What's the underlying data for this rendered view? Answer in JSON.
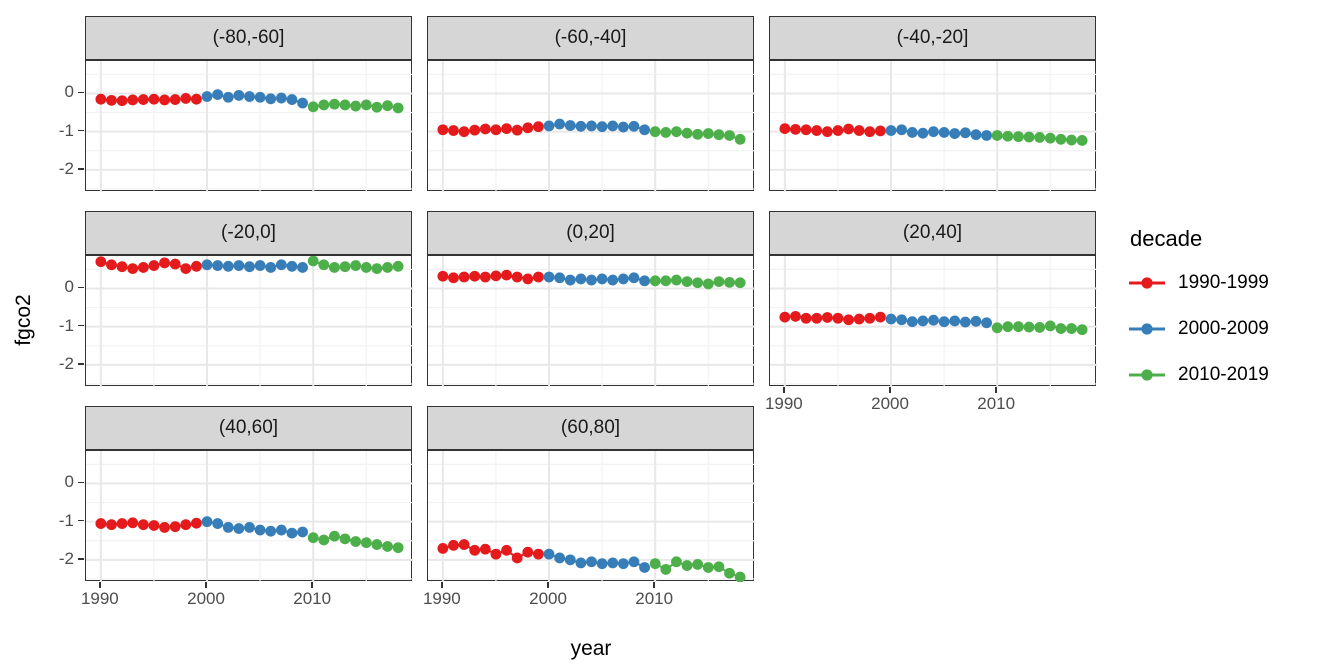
{
  "chart_data": {
    "type": "scatter",
    "title": "",
    "xlabel": "year",
    "ylabel": "fgco2",
    "legend_title": "decade",
    "legend_position": "right",
    "grid": true,
    "x_ticks": [
      1990,
      2000,
      2010
    ],
    "y_ticks": [
      0,
      -1,
      -2
    ],
    "x_minor_ticks": [
      1995,
      2005,
      2015
    ],
    "y_minor_ticks": [
      0.5,
      -0.5,
      -1.5,
      -2.5
    ],
    "xlim": [
      1988.6,
      2019.4
    ],
    "ylim": [
      -2.58,
      0.85
    ],
    "colors": {
      "red": "#E41A1C",
      "blue": "#377EB8",
      "green": "#4DAF4A",
      "strip_bg": "#D6D6D6",
      "panel_border": "#333333",
      "grid_major": "#E8E8E8",
      "grid_minor": "#F2F2F2",
      "tick_text": "#4D4D4D"
    },
    "series": [
      {
        "name": "1990-1999",
        "color": "#E41A1C",
        "years": [
          1990,
          1991,
          1992,
          1993,
          1994,
          1995,
          1996,
          1997,
          1998,
          1999
        ]
      },
      {
        "name": "2000-2009",
        "color": "#377EB8",
        "years": [
          2000,
          2001,
          2002,
          2003,
          2004,
          2005,
          2006,
          2007,
          2008,
          2009
        ]
      },
      {
        "name": "2010-2019",
        "color": "#4DAF4A",
        "years": [
          2010,
          2011,
          2012,
          2013,
          2014,
          2015,
          2016,
          2017,
          2018
        ]
      }
    ],
    "facets": [
      {
        "label": "(-80,-60]",
        "values": {
          "1990-1999": [
            -0.15,
            -0.18,
            -0.19,
            -0.17,
            -0.16,
            -0.15,
            -0.17,
            -0.16,
            -0.13,
            -0.15
          ],
          "2000-2009": [
            -0.08,
            -0.03,
            -0.1,
            -0.05,
            -0.08,
            -0.1,
            -0.14,
            -0.12,
            -0.16,
            -0.25
          ],
          "2010-2019": [
            -0.35,
            -0.3,
            -0.28,
            -0.3,
            -0.33,
            -0.3,
            -0.36,
            -0.32,
            -0.38
          ]
        }
      },
      {
        "label": "(-60,-40]",
        "values": {
          "1990-1999": [
            -0.95,
            -0.97,
            -1.0,
            -0.96,
            -0.93,
            -0.95,
            -0.92,
            -0.96,
            -0.9,
            -0.87
          ],
          "2000-2009": [
            -0.85,
            -0.8,
            -0.84,
            -0.86,
            -0.85,
            -0.87,
            -0.85,
            -0.88,
            -0.86,
            -0.95
          ],
          "2010-2019": [
            -1.0,
            -1.02,
            -1.0,
            -1.04,
            -1.07,
            -1.05,
            -1.08,
            -1.1,
            -1.2
          ]
        }
      },
      {
        "label": "(-40,-20]",
        "values": {
          "1990-1999": [
            -0.92,
            -0.94,
            -0.95,
            -0.97,
            -1.0,
            -0.97,
            -0.93,
            -0.97,
            -1.0,
            -0.98
          ],
          "2000-2009": [
            -0.97,
            -0.95,
            -1.02,
            -1.04,
            -1.0,
            -1.02,
            -1.05,
            -1.03,
            -1.08,
            -1.1
          ],
          "2010-2019": [
            -1.1,
            -1.12,
            -1.13,
            -1.14,
            -1.15,
            -1.17,
            -1.2,
            -1.22,
            -1.23
          ]
        }
      },
      {
        "label": "(-20,0]",
        "values": {
          "1990-1999": [
            0.7,
            0.62,
            0.57,
            0.52,
            0.55,
            0.6,
            0.67,
            0.64,
            0.52,
            0.58
          ],
          "2000-2009": [
            0.62,
            0.6,
            0.58,
            0.6,
            0.57,
            0.6,
            0.55,
            0.62,
            0.58,
            0.55
          ],
          "2010-2019": [
            0.72,
            0.62,
            0.55,
            0.57,
            0.6,
            0.55,
            0.52,
            0.55,
            0.58
          ]
        }
      },
      {
        "label": "(0,20]",
        "values": {
          "1990-1999": [
            0.32,
            0.28,
            0.3,
            0.32,
            0.3,
            0.33,
            0.35,
            0.3,
            0.25,
            0.3
          ],
          "2000-2009": [
            0.3,
            0.28,
            0.22,
            0.25,
            0.22,
            0.25,
            0.22,
            0.25,
            0.28,
            0.2
          ],
          "2010-2019": [
            0.2,
            0.2,
            0.22,
            0.18,
            0.15,
            0.12,
            0.18,
            0.16,
            0.15
          ]
        }
      },
      {
        "label": "(20,40]",
        "values": {
          "1990-1999": [
            -0.75,
            -0.73,
            -0.78,
            -0.78,
            -0.76,
            -0.78,
            -0.82,
            -0.8,
            -0.78,
            -0.75
          ],
          "2000-2009": [
            -0.8,
            -0.82,
            -0.87,
            -0.85,
            -0.83,
            -0.87,
            -0.85,
            -0.88,
            -0.86,
            -0.9
          ],
          "2010-2019": [
            -1.03,
            -1.0,
            -1.0,
            -1.01,
            -1.02,
            -0.98,
            -1.05,
            -1.05,
            -1.08
          ]
        }
      },
      {
        "label": "(40,60]",
        "values": {
          "1990-1999": [
            -1.05,
            -1.08,
            -1.05,
            -1.03,
            -1.08,
            -1.1,
            -1.15,
            -1.13,
            -1.08,
            -1.04
          ],
          "2000-2009": [
            -1.0,
            -1.05,
            -1.15,
            -1.18,
            -1.15,
            -1.22,
            -1.25,
            -1.22,
            -1.3,
            -1.27
          ],
          "2010-2019": [
            -1.42,
            -1.48,
            -1.38,
            -1.45,
            -1.52,
            -1.55,
            -1.6,
            -1.65,
            -1.68
          ]
        }
      },
      {
        "label": "(60,80]",
        "values": {
          "1990-1999": [
            -1.7,
            -1.62,
            -1.6,
            -1.75,
            -1.72,
            -1.85,
            -1.75,
            -1.95,
            -1.8,
            -1.85
          ],
          "2000-2009": [
            -1.85,
            -1.95,
            -2.0,
            -2.08,
            -2.05,
            -2.1,
            -2.08,
            -2.1,
            -2.05,
            -2.2
          ],
          "2010-2019": [
            -2.1,
            -2.25,
            -2.05,
            -2.15,
            -2.12,
            -2.2,
            -2.18,
            -2.35,
            -2.45
          ]
        }
      }
    ]
  }
}
